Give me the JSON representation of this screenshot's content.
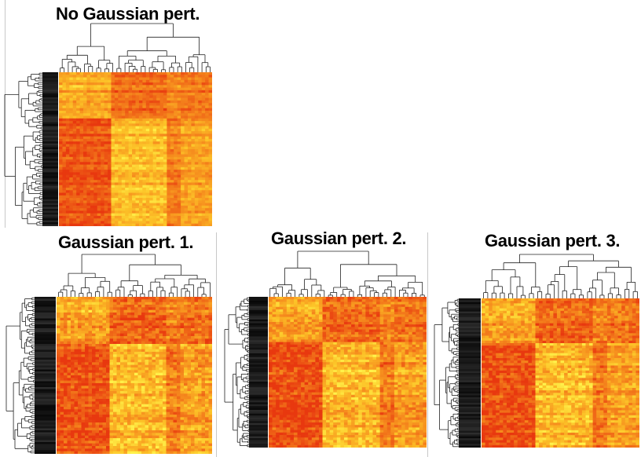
{
  "chart_data": [
    {
      "type": "heatmap",
      "title": "No Gaussian pert.",
      "colormap": [
        "#e8380f",
        "#f06a18",
        "#f7941f",
        "#fcc328",
        "#fff24a"
      ],
      "dendrogram_rows": true,
      "dendrogram_cols": true
    },
    {
      "type": "heatmap",
      "title": "Gaussian pert. 1.",
      "colormap": [
        "#e8380f",
        "#f06a18",
        "#f7941f",
        "#fcc328",
        "#fff24a"
      ],
      "dendrogram_rows": true,
      "dendrogram_cols": true
    },
    {
      "type": "heatmap",
      "title": "Gaussian pert. 2.",
      "colormap": [
        "#e8380f",
        "#f06a18",
        "#f7941f",
        "#fcc328",
        "#fff24a"
      ],
      "dendrogram_rows": true,
      "dendrogram_cols": true
    },
    {
      "type": "heatmap",
      "title": "Gaussian pert. 3.",
      "colormap": [
        "#e8380f",
        "#f06a18",
        "#f7941f",
        "#fcc328",
        "#fff24a"
      ],
      "dendrogram_rows": true,
      "dendrogram_cols": true
    }
  ]
}
